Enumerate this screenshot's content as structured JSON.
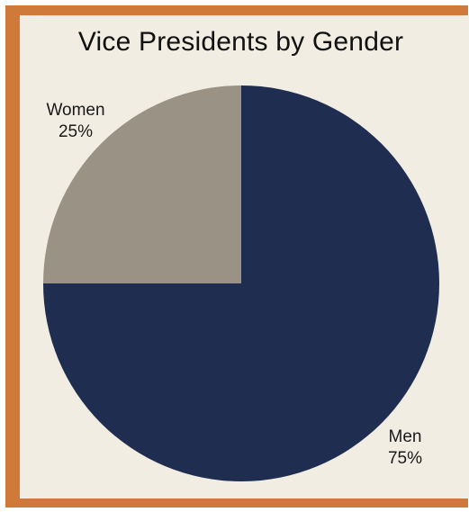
{
  "chart_data": {
    "type": "pie",
    "title": "Vice Presidents by Gender",
    "slices": [
      {
        "label": "Men",
        "value": 75,
        "value_label": "75%",
        "color": "#1f2d50"
      },
      {
        "label": "Women",
        "value": 25,
        "value_label": "25%",
        "color": "#9a9385"
      }
    ],
    "start_angle_deg": 0,
    "direction": "clockwise"
  },
  "colors": {
    "frame": "#cf7a3a",
    "panel": "#f1ede2"
  }
}
